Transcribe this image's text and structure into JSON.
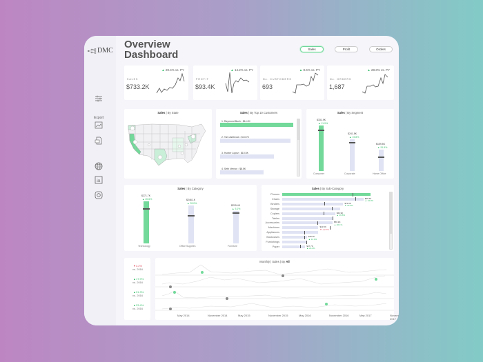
{
  "header": {
    "title_line1": "Overview",
    "title_line2": "Dashboard"
  },
  "logo": {
    "text": "DMC"
  },
  "sidebar": {
    "export_label": "Export",
    "icons": [
      "filter-icon",
      "image-export-icon",
      "pdf-export-icon",
      "globe-icon",
      "linkedin-icon",
      "instagram-icon"
    ]
  },
  "tabs": [
    {
      "label": "Sales",
      "active": true
    },
    {
      "label": "Profit",
      "active": false
    },
    {
      "label": "Orders",
      "active": false
    }
  ],
  "kpis": [
    {
      "label": "SALES",
      "value": "$733.2K",
      "delta": "20.4%",
      "vs": "vs. PY"
    },
    {
      "label": "PROFIT",
      "value": "$93.4K",
      "delta": "14.2%",
      "vs": "vs. PY"
    },
    {
      "label": "No. CUSTOMERS",
      "value": "693",
      "delta": "8.6%",
      "vs": "vs. PY"
    },
    {
      "label": "No. ORDERS",
      "value": "1,687",
      "delta": "28.3%",
      "vs": "vs. PY"
    }
  ],
  "colors": {
    "accent_green": "#72d99a",
    "bar_bg": "#e0e3f3",
    "down_red": "#e05060"
  },
  "panels": {
    "state": {
      "title_bold": "Sales",
      "title_rest": " | By State"
    },
    "customers": {
      "title_bold": "Sales",
      "title_rest": " | By Top 10 Customers",
      "items": [
        {
          "label": "1. Raymond Buch : $14.2K",
          "pct": 100,
          "green": true
        },
        {
          "label": "2. Tom Ashbrook : $13.7K",
          "pct": 96,
          "green": false
        },
        {
          "label": "3. Hunter Lopez : $10.5K",
          "pct": 74,
          "green": false
        },
        {
          "label": "4. Seth Vernon : $8.5K",
          "pct": 60,
          "green": false
        }
      ]
    },
    "segment": {
      "title_bold": "Sales",
      "title_rest": " | By Segment",
      "items": [
        {
          "name": "Consumer",
          "value": "$331.9K",
          "delta": "11.9%"
        },
        {
          "name": "Corporate",
          "value": "$241.8K",
          "delta": "19.8%"
        },
        {
          "name": "Home Office",
          "value": "$159.5K",
          "delta": "51.5%"
        }
      ]
    },
    "category": {
      "title_bold": "Sales",
      "title_rest": " | By Category",
      "items": [
        {
          "name": "Technology",
          "value": "$271.7K",
          "delta": "20.6%"
        },
        {
          "name": "Office Supplies",
          "value": "$246.1K",
          "delta": "33.0%"
        },
        {
          "name": "Furniture",
          "value": "$215.4K",
          "delta": "5.1%"
        }
      ]
    },
    "subcategory": {
      "title_bold": "Sales",
      "title_rest": " | By Sub-Category",
      "items": [
        {
          "name": "Phones",
          "pct": 100,
          "mark": 80,
          "value": "",
          "delta": ""
        },
        {
          "name": "Chairs",
          "pct": 92,
          "mark": 83,
          "value": "$95.6K",
          "delta": "13.0%",
          "dir": "up"
        },
        {
          "name": "Binders",
          "pct": 69,
          "mark": 48,
          "value": "$72.9K",
          "delta": "16.0%",
          "dir": "up"
        },
        {
          "name": "Storage",
          "pct": 66,
          "mark": 56,
          "value": "",
          "delta": ""
        },
        {
          "name": "Copiers",
          "pct": 60,
          "mark": 47,
          "value": "$62.9K",
          "delta": "26.8%",
          "dir": "up"
        },
        {
          "name": "Tables",
          "pct": 57,
          "mark": 57,
          "value": "",
          "delta": ""
        },
        {
          "name": "Accessories",
          "pct": 57,
          "mark": 40,
          "value": "$59.9K",
          "delta": "40.1%",
          "dir": "up"
        },
        {
          "name": "Machines",
          "pct": 41,
          "mark": 54,
          "value": "$43.5K",
          "delta": "-22.7%",
          "dir": "down"
        },
        {
          "name": "Appliances",
          "pct": 41,
          "mark": 25,
          "value": "",
          "delta": ""
        },
        {
          "name": "Bookcases",
          "pct": 28,
          "mark": 25,
          "value": "$30.0K",
          "delta": "14.3%",
          "dir": "up"
        },
        {
          "name": "Furnishings",
          "pct": 27,
          "mark": 27,
          "value": "",
          "delta": ""
        },
        {
          "name": "Paper",
          "pct": 26,
          "mark": 20,
          "value": "$27.7K",
          "delta": "24.0%",
          "dir": "up"
        }
      ]
    },
    "monthly": {
      "title_pre": "Monthly | Sales | By ",
      "title_bold": "All",
      "axis": [
        "May 2014",
        "November 2014",
        "May 2015",
        "November 2015",
        "May 2016",
        "November 2016",
        "May 2017",
        "November 2017"
      ],
      "rows": [
        {
          "delta": "3.2%",
          "dir": "down",
          "vs": "vs. 2016"
        },
        {
          "delta": "17.9%",
          "dir": "up",
          "vs": "vs. 2016"
        },
        {
          "delta": "31.3%",
          "dir": "up",
          "vs": "vs. 2016"
        },
        {
          "delta": "33.4%",
          "dir": "up",
          "vs": "vs. 2016"
        }
      ]
    }
  }
}
